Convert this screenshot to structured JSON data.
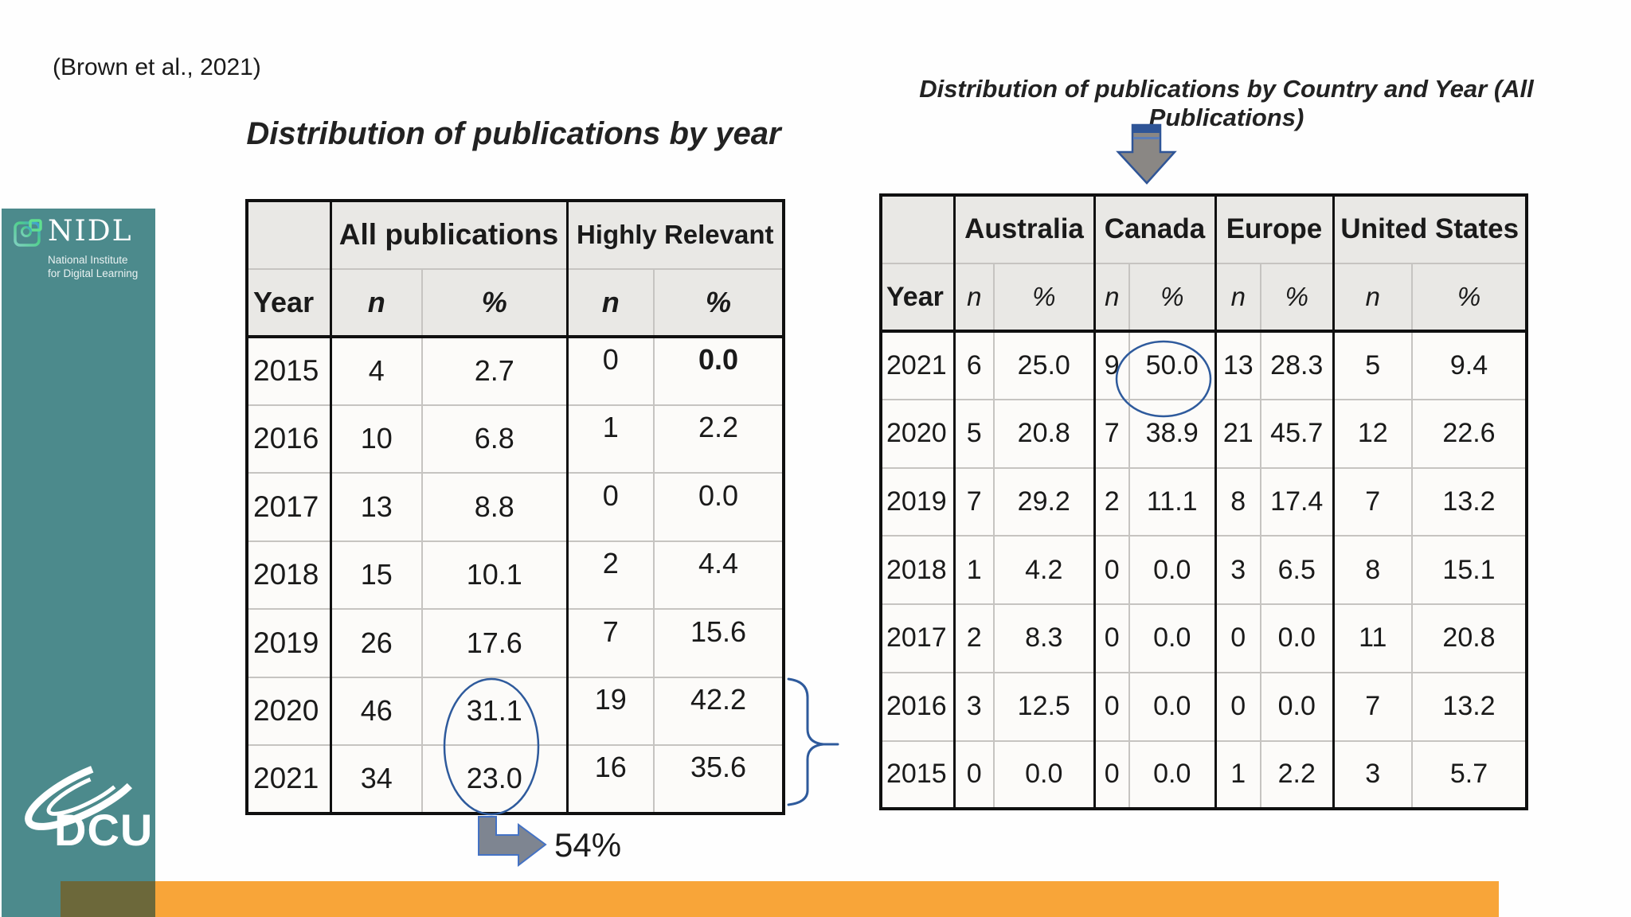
{
  "slide": {
    "citation": "(Brown et al., 2021)",
    "callout": "54%"
  },
  "sidebar": {
    "nidl_acronym": "NIDL",
    "nidl_line1": "National Institute",
    "nidl_line2": "for Digital Learning",
    "dcu": "DCU"
  },
  "left_table": {
    "title": "Distribution of publications by year",
    "group_headers": [
      "All publications",
      "Highly Relevant"
    ],
    "col_headers": [
      "Year",
      "n",
      "%",
      "n",
      "%"
    ],
    "rows": [
      [
        "2015",
        "4",
        "2.7",
        "0",
        "0.0"
      ],
      [
        "2016",
        "10",
        "6.8",
        "1",
        "2.2"
      ],
      [
        "2017",
        "13",
        "8.8",
        "0",
        "0.0"
      ],
      [
        "2018",
        "15",
        "10.1",
        "2",
        "4.4"
      ],
      [
        "2019",
        "26",
        "17.6",
        "7",
        "15.6"
      ],
      [
        "2020",
        "46",
        "31.1",
        "19",
        "42.2"
      ],
      [
        "2021",
        "34",
        "23.0",
        "16",
        "35.6"
      ]
    ],
    "emphasis": [
      {
        "row": 0,
        "col": 4
      }
    ],
    "circled_values": [
      "31.1",
      "23.0"
    ]
  },
  "right_table": {
    "title": "Distribution of publications by Country and Year (All Publications)",
    "group_headers": [
      "Australia",
      "Canada",
      "Europe",
      "United States"
    ],
    "col_headers": [
      "Year",
      "n",
      "%",
      "n",
      "%",
      "n",
      "%",
      "n",
      "%"
    ],
    "rows": [
      [
        "2021",
        "6",
        "25.0",
        "9",
        "50.0",
        "13",
        "28.3",
        "5",
        "9.4"
      ],
      [
        "2020",
        "5",
        "20.8",
        "7",
        "38.9",
        "21",
        "45.7",
        "12",
        "22.6"
      ],
      [
        "2019",
        "7",
        "29.2",
        "2",
        "11.1",
        "8",
        "17.4",
        "7",
        "13.2"
      ],
      [
        "2018",
        "1",
        "4.2",
        "0",
        "0.0",
        "3",
        "6.5",
        "8",
        "15.1"
      ],
      [
        "2017",
        "2",
        "8.3",
        "0",
        "0.0",
        "0",
        "0.0",
        "11",
        "20.8"
      ],
      [
        "2016",
        "3",
        "12.5",
        "0",
        "0.0",
        "0",
        "0.0",
        "7",
        "13.2"
      ],
      [
        "2015",
        "0",
        "0.0",
        "0",
        "0.0",
        "1",
        "2.2",
        "3",
        "5.7"
      ]
    ],
    "circled_values": [
      "50.0"
    ]
  },
  "colors": {
    "sidebar_teal": "#4c8a8c",
    "bar_orange": "#f8a539",
    "overlap_olive": "#6c683a",
    "annotation_blue": "#2e5a9c",
    "arrow_gray": "#8a8784",
    "header_gray": "#e9e8e5"
  }
}
